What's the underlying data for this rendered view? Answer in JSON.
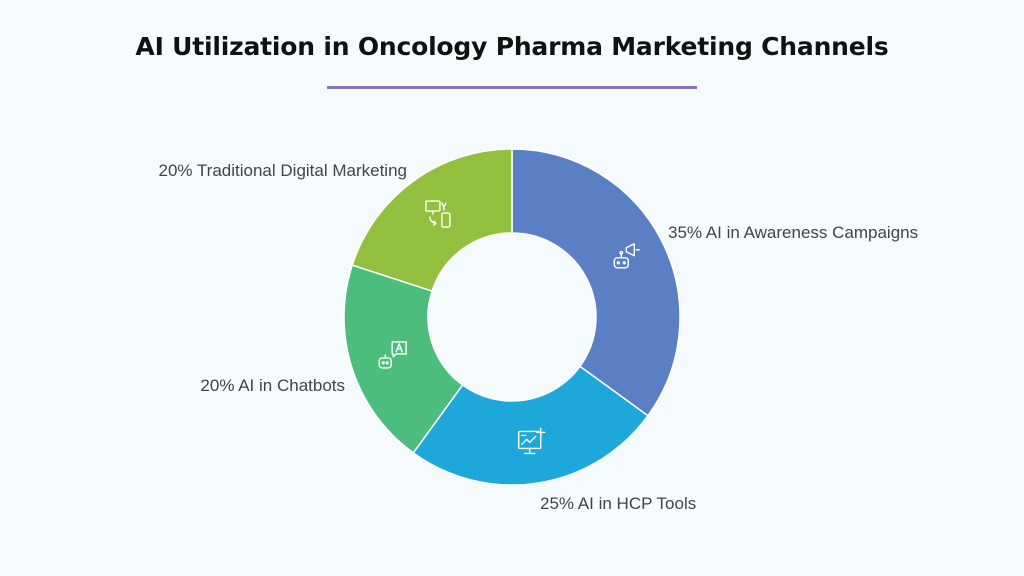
{
  "title": "AI Utilization in Oncology Pharma Marketing Channels",
  "colors": {
    "background": "#f5fbfc",
    "title_rule": "#8a74b8"
  },
  "chart_data": {
    "type": "pie",
    "donut": true,
    "title": "AI Utilization in Oncology Pharma Marketing Channels",
    "slices": [
      {
        "label": "35% AI in Awareness Campaigns",
        "value": 35,
        "color": "#5b7fc4",
        "icon": "megaphone-bot-icon"
      },
      {
        "label": "25% AI in HCP Tools",
        "value": 25,
        "color": "#1ea7d9",
        "icon": "monitor-growth-icon"
      },
      {
        "label": "20% AI in Chatbots",
        "value": 20,
        "color": "#4cbd7c",
        "icon": "chatbot-icon"
      },
      {
        "label": "20% Traditional Digital Marketing",
        "value": 20,
        "color": "#93bf3e",
        "icon": "devices-sync-icon"
      }
    ]
  }
}
